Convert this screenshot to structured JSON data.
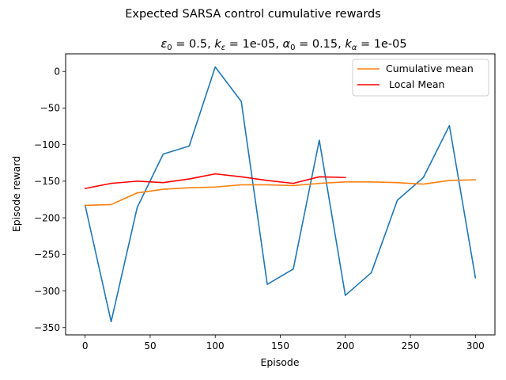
{
  "chart_data": {
    "type": "line",
    "title": "Expected SARSA control cumulative rewards",
    "subtitle": {
      "eps_sym": "ε",
      "eps_sub": "0",
      "eps_val": " = 0.5, ",
      "keps_sym": "k",
      "keps_sub": "ε",
      "keps_val": " = 1e-05, ",
      "alpha_sym": "α",
      "alpha_sub": "0",
      "alpha_val": " = 0.15, ",
      "kalpha_sym": "k",
      "kalpha_sub": "α",
      "kalpha_val": " = 1e-05"
    },
    "xlabel": "Episode",
    "ylabel": "Episode reward",
    "xlim": [
      -15,
      315
    ],
    "ylim": [
      -360,
      24
    ],
    "xticks": [
      0,
      50,
      100,
      150,
      200,
      250,
      300
    ],
    "yticks": [
      0,
      -50,
      -100,
      -150,
      -200,
      -250,
      -300,
      -350
    ],
    "grid": false,
    "legend_position": "top-right",
    "series": [
      {
        "color": "#1f77b4",
        "x": [
          0,
          20,
          40,
          60,
          80,
          100,
          120,
          140,
          160,
          180,
          200,
          220,
          240,
          260,
          280,
          300
        ],
        "y": [
          -183,
          -342,
          -186,
          -113,
          -102,
          6,
          -41,
          -291,
          -270,
          -94,
          -306,
          -275,
          -176,
          -145,
          -74,
          -282
        ]
      },
      {
        "name": "Cumulative mean",
        "color": "#ff7f0e",
        "x": [
          0,
          20,
          40,
          60,
          80,
          100,
          120,
          140,
          160,
          180,
          200,
          220,
          240,
          260,
          280,
          300
        ],
        "y": [
          -183,
          -182,
          -166,
          -161,
          -159,
          -158,
          -155,
          -155,
          -156,
          -153,
          -151,
          -151,
          -152,
          -154,
          -149,
          -148
        ]
      },
      {
        "name": " Local Mean",
        "color": "#ff0000",
        "x": [
          0,
          20,
          40,
          60,
          80,
          100,
          120,
          140,
          160,
          180,
          200
        ],
        "y": [
          -160,
          -153,
          -150,
          -152,
          -147,
          -140,
          -144,
          -149,
          -153,
          -144,
          -145
        ]
      }
    ]
  }
}
